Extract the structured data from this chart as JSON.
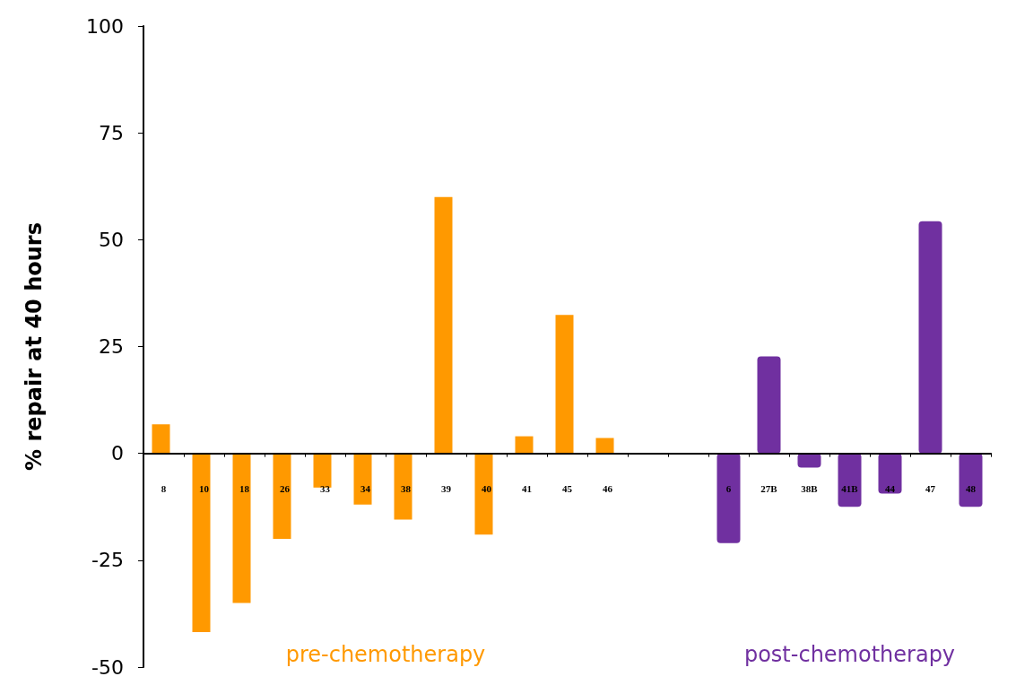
{
  "chart_data": {
    "type": "bar",
    "ylabel": "% repair at 40 hours",
    "categories": [
      "8",
      "10",
      "18",
      "26",
      "33",
      "34",
      "38",
      "39",
      "40",
      "41",
      "45",
      "46",
      null,
      null,
      "6",
      "27B",
      "38B",
      "41B",
      "44",
      "47",
      "48"
    ],
    "series": [
      {
        "name": "pre-chemotherapy",
        "color": "#ff9900",
        "values": [
          6.8,
          -41.8,
          -35,
          -20,
          -8,
          -12,
          -15.5,
          60,
          -19,
          4,
          32.4,
          3.6,
          null,
          null,
          null,
          null,
          null,
          null,
          null,
          null,
          null
        ]
      },
      {
        "name": "post-chemotherapy",
        "color": "#7030a0",
        "values": [
          null,
          null,
          null,
          null,
          null,
          null,
          null,
          null,
          null,
          null,
          null,
          null,
          null,
          null,
          -21,
          22.7,
          -3.3,
          -12.5,
          -9.4,
          54.3,
          -12.5
        ]
      }
    ],
    "ylim": [
      -50,
      100
    ],
    "yticks": [
      -50,
      -25,
      0,
      25,
      50,
      75,
      100
    ],
    "legend": false
  }
}
